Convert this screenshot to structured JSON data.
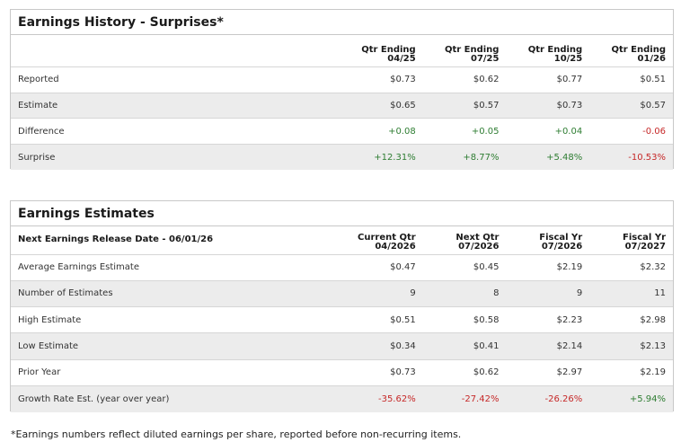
{
  "history": {
    "title": "Earnings History - Surprises*",
    "columns": [
      {
        "line1": "Qtr Ending",
        "line2": "04/25"
      },
      {
        "line1": "Qtr Ending",
        "line2": "07/25"
      },
      {
        "line1": "Qtr Ending",
        "line2": "10/25"
      },
      {
        "line1": "Qtr Ending",
        "line2": "01/26"
      }
    ],
    "rows": [
      {
        "label": "Reported",
        "values": [
          "$0.73",
          "$0.62",
          "$0.77",
          "$0.51"
        ]
      },
      {
        "label": "Estimate",
        "values": [
          "$0.65",
          "$0.57",
          "$0.73",
          "$0.57"
        ]
      },
      {
        "label": "Difference",
        "values": [
          "+0.08",
          "+0.05",
          "+0.04",
          "-0.06"
        ]
      },
      {
        "label": "Surprise",
        "values": [
          "+12.31%",
          "+8.77%",
          "+5.48%",
          "-10.53%"
        ]
      }
    ]
  },
  "estimates": {
    "title": "Earnings Estimates",
    "release_label": "Next Earnings Release Date - 06/01/26",
    "columns": [
      {
        "line1": "Current Qtr",
        "line2": "04/2026"
      },
      {
        "line1": "Next Qtr",
        "line2": "07/2026"
      },
      {
        "line1": "Fiscal Yr",
        "line2": "07/2026"
      },
      {
        "line1": "Fiscal Yr",
        "line2": "07/2027"
      }
    ],
    "rows": [
      {
        "label": "Average Earnings Estimate",
        "values": [
          "$0.47",
          "$0.45",
          "$2.19",
          "$2.32"
        ]
      },
      {
        "label": "Number of Estimates",
        "values": [
          "9",
          "8",
          "9",
          "11"
        ]
      },
      {
        "label": "High Estimate",
        "values": [
          "$0.51",
          "$0.58",
          "$2.23",
          "$2.98"
        ]
      },
      {
        "label": "Low Estimate",
        "values": [
          "$0.34",
          "$0.41",
          "$2.14",
          "$2.13"
        ]
      },
      {
        "label": "Prior Year",
        "values": [
          "$0.73",
          "$0.62",
          "$2.97",
          "$2.19"
        ]
      },
      {
        "label": "Growth Rate Est. (year over year)",
        "values": [
          "-35.62%",
          "-27.42%",
          "-26.26%",
          "+5.94%"
        ]
      }
    ]
  },
  "colors": {
    "positive": "#2e7d32",
    "negative": "#c62828",
    "shade": "#ececec",
    "border": "#c8c8c8"
  },
  "footnote": "*Earnings numbers reflect diluted earnings per share, reported before non-recurring items."
}
